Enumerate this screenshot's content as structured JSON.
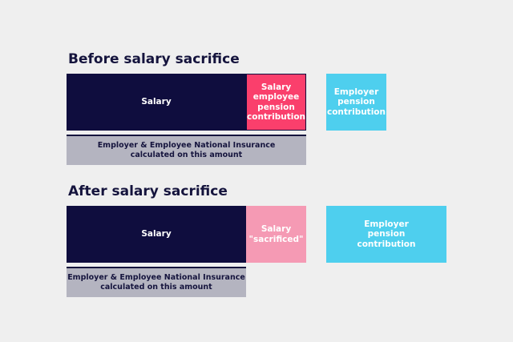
{
  "before": {
    "title": "Before salary sacrifice",
    "salary_label": "Salary",
    "employee_contribution_label": "Salary\nemployee\npension\ncontribution",
    "employer_contribution_label": "Employer\npension\ncontribution",
    "ni_label": "Employer & Employee National Insurance\ncalculated on this amount"
  },
  "after": {
    "title": "After salary sacrifice",
    "salary_label": "Salary",
    "sacrificed_label": "Salary\n\"sacrificed\"",
    "employer_contribution_label": "Employer\npension\ncontribution",
    "ni_label": "Employer & Employee National Insurance\ncalculated on this amount"
  },
  "colors": {
    "background": "#efefef",
    "navy": "#0f0d3e",
    "pink": "#fa3f6c",
    "light_pink": "#f59ab4",
    "cyan": "#4ecfee",
    "grey": "#b4b4c0"
  }
}
